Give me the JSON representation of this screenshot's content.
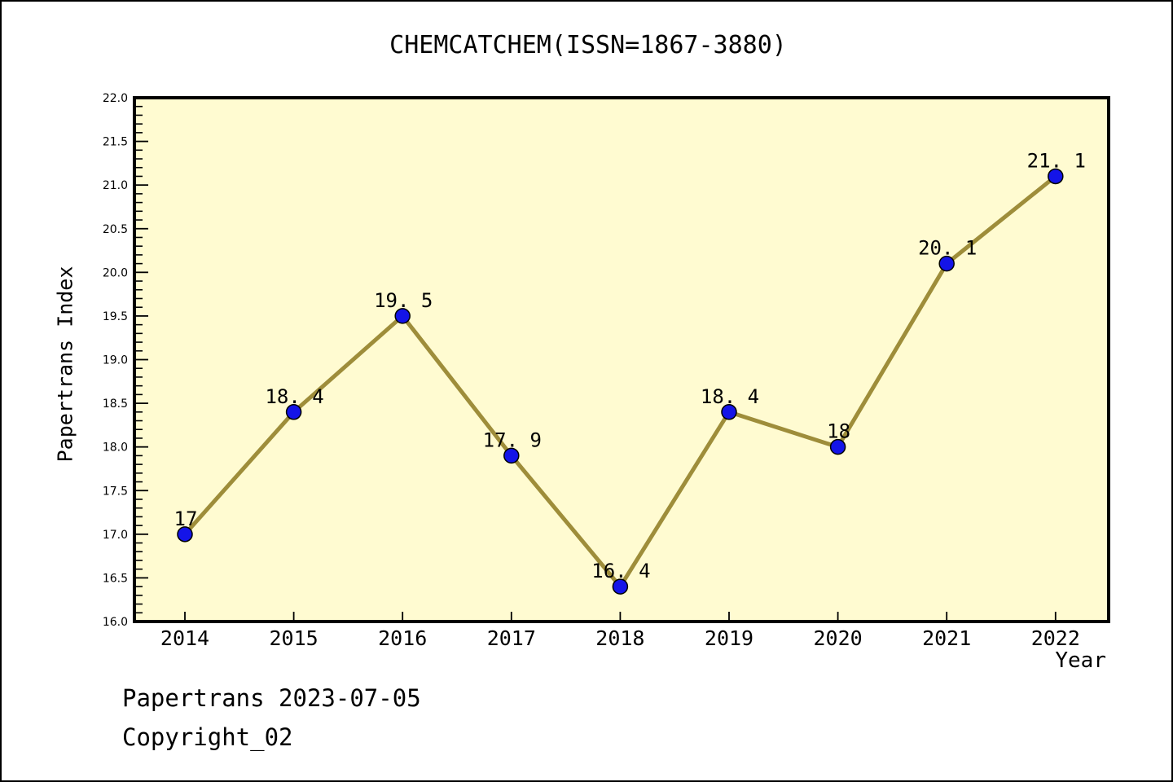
{
  "chart_data": {
    "type": "line",
    "title": "CHEMCATCHEM(ISSN=1867-3880)",
    "xlabel": "Year",
    "ylabel": "Papertrans Index",
    "categories": [
      "2014",
      "2015",
      "2016",
      "2017",
      "2018",
      "2019",
      "2020",
      "2021",
      "2022"
    ],
    "values": [
      17,
      18.4,
      19.5,
      17.9,
      16.4,
      18.4,
      18,
      20.1,
      21.1
    ],
    "point_labels": [
      "17",
      "18. 4",
      "19. 5",
      "17. 9",
      "16. 4",
      "18. 4",
      "18",
      "20. 1",
      "21. 1"
    ],
    "ylim": [
      16.0,
      22.0
    ],
    "y_major_step": 0.5,
    "y_minor_step": 0.1,
    "y_tick_labels": [
      "16.0",
      "16.5",
      "17.0",
      "17.5",
      "18.0",
      "18.5",
      "19.0",
      "19.5",
      "20.0",
      "20.5",
      "21.0",
      "21.5",
      "22.0"
    ],
    "grid": "off",
    "legend": "none",
    "colors": {
      "line": "#9e8d3a",
      "marker_fill": "#1414e8",
      "marker_edge": "#000000",
      "plot_bg": "#fffbd1",
      "figure_bg": "#ffffff",
      "axis": "#000000",
      "text": "#000000"
    }
  },
  "footer": {
    "line1": "Papertrans 2023-07-05",
    "line2": "Copyright_02"
  }
}
